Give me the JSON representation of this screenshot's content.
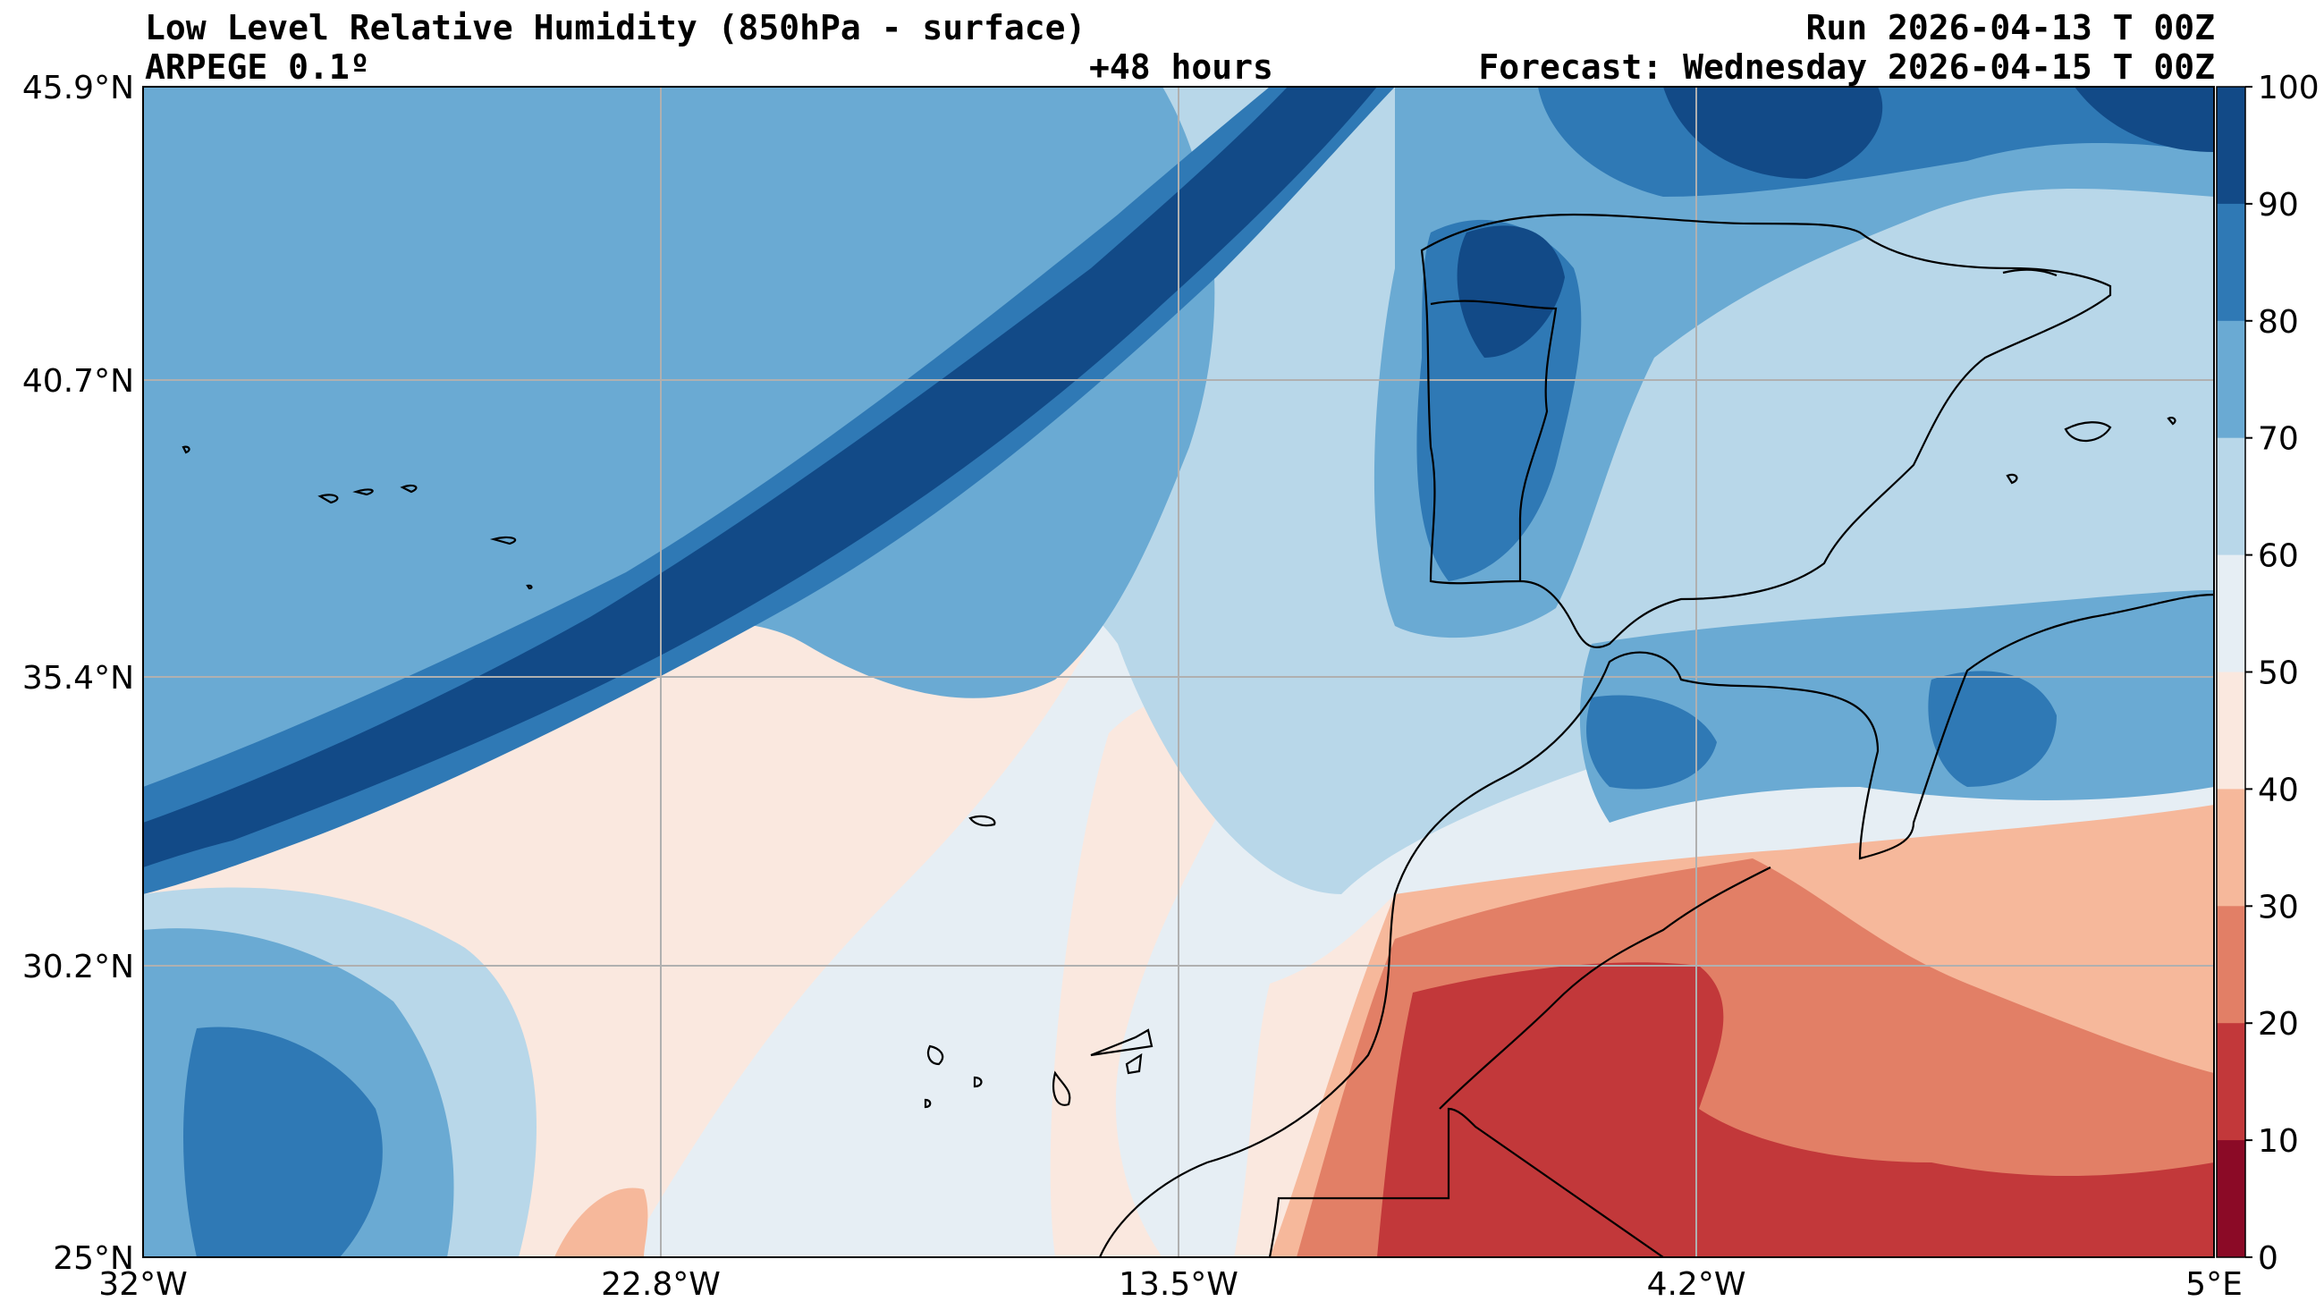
{
  "header": {
    "title": "Low Level Relative Humidity (850hPa - surface)",
    "model": "ARPEGE 0.1º",
    "lead_time": "+48 hours",
    "run": "Run 2026-04-13 T 00Z",
    "forecast": "Forecast: Wednesday 2026-04-15 T 00Z"
  },
  "axes": {
    "lat_labels": [
      "45.9°N",
      "40.7°N",
      "35.4°N",
      "30.2°N",
      "25°N"
    ],
    "lon_labels": [
      "32°W",
      "22.8°W",
      "13.5°W",
      "4.2°W",
      "5°E"
    ]
  },
  "colorbar": {
    "ticks": [
      "100",
      "90",
      "80",
      "70",
      "60",
      "50",
      "40",
      "30",
      "20",
      "10",
      "0"
    ],
    "colors": [
      "#124a87",
      "#2f79b5",
      "#6aaad3",
      "#b8d7e9",
      "#e6eef4",
      "#fae8df",
      "#f6b89b",
      "#e27f66",
      "#c2383a",
      "#8b0a26"
    ]
  },
  "palette": {
    "rh_90_100": "#124a87",
    "rh_80_90": "#2f79b5",
    "rh_70_80": "#6aaad3",
    "rh_60_70": "#b8d7e9",
    "rh_50_60": "#e6eef4",
    "rh_40_50": "#fae8df",
    "rh_30_40": "#f6b89b",
    "rh_20_30": "#e27f66",
    "rh_10_20": "#c2383a",
    "rh_0_10": "#8b0a26"
  }
}
